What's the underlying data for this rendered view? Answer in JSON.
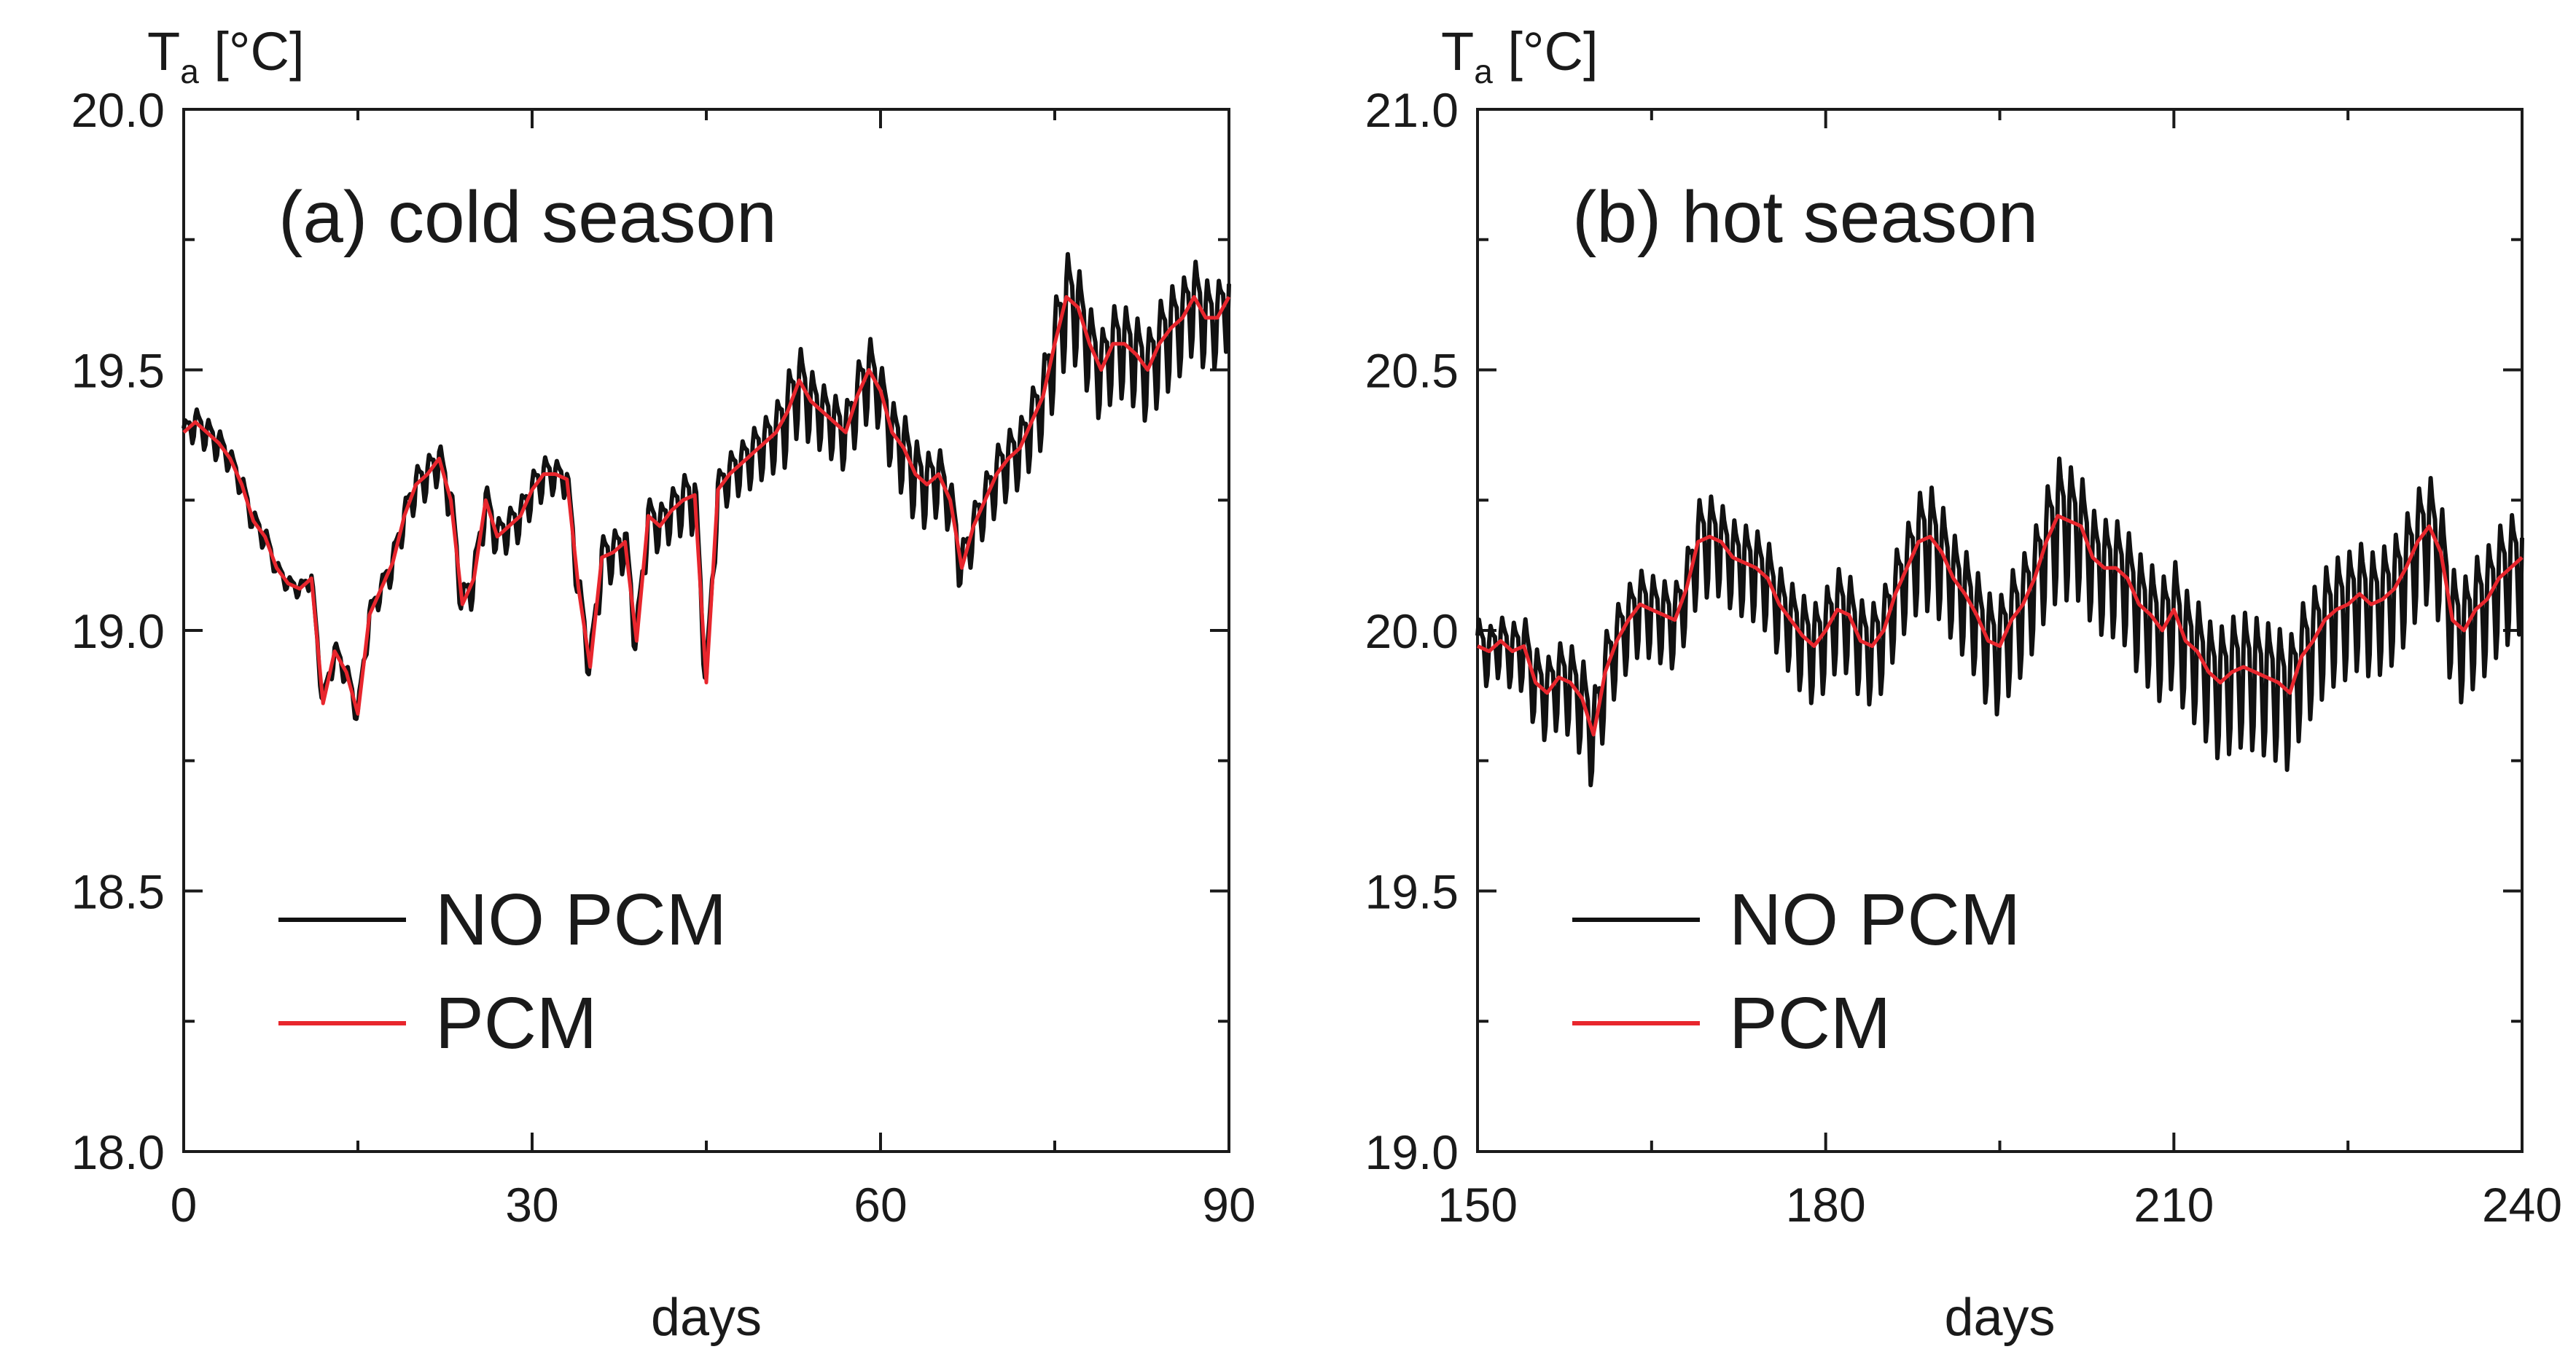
{
  "chart_data": [
    {
      "type": "line",
      "panel_label": "(a) cold season",
      "ylabel_main": "T",
      "ylabel_sub": "a",
      "ylabel_unit": " [°C]",
      "xlabel": "days",
      "xlim": [
        0,
        90
      ],
      "ylim": [
        18.0,
        20.0
      ],
      "xticks": [
        "0",
        "30",
        "60",
        "90"
      ],
      "yticks": [
        "18.0",
        "18.5",
        "19.0",
        "19.5",
        "20.0"
      ],
      "legend": [
        "NO PCM",
        "PCM"
      ],
      "legend_position": "lower-left",
      "series": [
        {
          "name": "PCM",
          "color": "#e8262d",
          "x": [
            0,
            1,
            2,
            3,
            4,
            5,
            6,
            7,
            8,
            9,
            10,
            11,
            12,
            13,
            14,
            15,
            16,
            17,
            18,
            19,
            20,
            21,
            22,
            23,
            24,
            25,
            26,
            27,
            28,
            29,
            30,
            31,
            32,
            33,
            34,
            35,
            36,
            37,
            38,
            39,
            40,
            41,
            42,
            43,
            44,
            45,
            46,
            47,
            48,
            49,
            50,
            51,
            52,
            53,
            54,
            55,
            56,
            57,
            58,
            59,
            60,
            61,
            62,
            63,
            64,
            65,
            66,
            67,
            68,
            69,
            70,
            71,
            72,
            73,
            74,
            75,
            76,
            77,
            78,
            79,
            80,
            81,
            82,
            83,
            84,
            85,
            86,
            87,
            88,
            89,
            90
          ],
          "y": [
            19.38,
            19.4,
            19.38,
            19.36,
            19.33,
            19.28,
            19.21,
            19.18,
            19.12,
            19.09,
            19.08,
            19.1,
            18.86,
            18.96,
            18.92,
            18.84,
            19.03,
            19.08,
            19.13,
            19.22,
            19.28,
            19.3,
            19.33,
            19.25,
            19.05,
            19.1,
            19.25,
            19.18,
            19.2,
            19.22,
            19.27,
            19.3,
            19.3,
            19.29,
            19.08,
            18.93,
            19.14,
            19.15,
            19.17,
            18.98,
            19.22,
            19.2,
            19.23,
            19.25,
            19.26,
            18.9,
            19.27,
            19.3,
            19.32,
            19.34,
            19.36,
            19.38,
            19.42,
            19.48,
            19.44,
            19.42,
            19.4,
            19.38,
            19.45,
            19.5,
            19.46,
            19.38,
            19.35,
            19.3,
            19.28,
            19.3,
            19.25,
            19.12,
            19.2,
            19.25,
            19.3,
            19.33,
            19.35,
            19.4,
            19.45,
            19.55,
            19.64,
            19.62,
            19.55,
            19.5,
            19.55,
            19.55,
            19.53,
            19.5,
            19.55,
            19.58,
            19.6,
            19.64,
            19.6,
            19.6,
            19.64
          ]
        },
        {
          "name": "NO PCM",
          "color": "#111111",
          "osc_amplitude": [
            0.03,
            0.04,
            0.04,
            0.04,
            0.03,
            0.03,
            0.03,
            0.03,
            0.02,
            0.02,
            0.02,
            0.02,
            0.03,
            0.03,
            0.03,
            0.03,
            0.03,
            0.03,
            0.04,
            0.04,
            0.05,
            0.05,
            0.05,
            0.05,
            0.05,
            0.05,
            0.05,
            0.05,
            0.05,
            0.05,
            0.05,
            0.05,
            0.04,
            0.04,
            0.05,
            0.05,
            0.06,
            0.06,
            0.06,
            0.06,
            0.05,
            0.06,
            0.06,
            0.07,
            0.08,
            0.05,
            0.05,
            0.06,
            0.06,
            0.07,
            0.07,
            0.08,
            0.11,
            0.1,
            0.09,
            0.08,
            0.08,
            0.08,
            0.09,
            0.1,
            0.08,
            0.09,
            0.1,
            0.1,
            0.09,
            0.08,
            0.07,
            0.07,
            0.06,
            0.07,
            0.08,
            0.08,
            0.08,
            0.09,
            0.1,
            0.12,
            0.13,
            0.12,
            0.11,
            0.11,
            0.11,
            0.11,
            0.11,
            0.11,
            0.12,
            0.12,
            0.11,
            0.11,
            0.11,
            0.1,
            0.1
          ]
        }
      ]
    },
    {
      "type": "line",
      "panel_label": "(b) hot season",
      "ylabel_main": "T",
      "ylabel_sub": "a",
      "ylabel_unit": " [°C]",
      "xlabel": "days",
      "xlim": [
        150,
        240
      ],
      "ylim": [
        19.0,
        21.0
      ],
      "xticks": [
        "150",
        "180",
        "210",
        "240"
      ],
      "yticks": [
        "19.0",
        "19.5",
        "20.0",
        "20.5",
        "21.0"
      ],
      "legend": [
        "NO PCM",
        "PCM"
      ],
      "legend_position": "lower-left",
      "series": [
        {
          "name": "PCM",
          "color": "#e8262d",
          "x": [
            150,
            151,
            152,
            153,
            154,
            155,
            156,
            157,
            158,
            159,
            160,
            161,
            162,
            163,
            164,
            165,
            166,
            167,
            168,
            169,
            170,
            171,
            172,
            173,
            174,
            175,
            176,
            177,
            178,
            179,
            180,
            181,
            182,
            183,
            184,
            185,
            186,
            187,
            188,
            189,
            190,
            191,
            192,
            193,
            194,
            195,
            196,
            197,
            198,
            199,
            200,
            201,
            202,
            203,
            204,
            205,
            206,
            207,
            208,
            209,
            210,
            211,
            212,
            213,
            214,
            215,
            216,
            217,
            218,
            219,
            220,
            221,
            222,
            223,
            224,
            225,
            226,
            227,
            228,
            229,
            230,
            231,
            232,
            233,
            234,
            235,
            236,
            237,
            238,
            239,
            240
          ],
          "y": [
            19.97,
            19.96,
            19.98,
            19.96,
            19.97,
            19.9,
            19.88,
            19.91,
            19.9,
            19.87,
            19.8,
            19.92,
            19.98,
            20.02,
            20.05,
            20.04,
            20.03,
            20.02,
            20.08,
            20.17,
            20.18,
            20.17,
            20.14,
            20.13,
            20.12,
            20.1,
            20.05,
            20.02,
            19.99,
            19.97,
            20.0,
            20.04,
            20.03,
            19.98,
            19.97,
            20.0,
            20.07,
            20.12,
            20.17,
            20.18,
            20.15,
            20.1,
            20.07,
            20.03,
            19.98,
            19.97,
            20.02,
            20.05,
            20.1,
            20.17,
            20.22,
            20.21,
            20.2,
            20.14,
            20.12,
            20.12,
            20.1,
            20.05,
            20.03,
            20.0,
            20.04,
            19.98,
            19.96,
            19.92,
            19.9,
            19.92,
            19.93,
            19.92,
            19.91,
            19.9,
            19.88,
            19.95,
            19.98,
            20.02,
            20.04,
            20.05,
            20.07,
            20.05,
            20.06,
            20.08,
            20.12,
            20.17,
            20.2,
            20.15,
            20.02,
            20.0,
            20.04,
            20.06,
            20.1,
            20.12,
            20.14
          ]
        },
        {
          "name": "NO PCM",
          "color": "#111111",
          "osc_amplitude": [
            0.08,
            0.07,
            0.07,
            0.08,
            0.09,
            0.1,
            0.1,
            0.1,
            0.11,
            0.12,
            0.12,
            0.11,
            0.1,
            0.1,
            0.1,
            0.1,
            0.1,
            0.1,
            0.1,
            0.12,
            0.12,
            0.11,
            0.11,
            0.11,
            0.11,
            0.11,
            0.11,
            0.11,
            0.12,
            0.12,
            0.12,
            0.12,
            0.12,
            0.12,
            0.12,
            0.12,
            0.12,
            0.12,
            0.14,
            0.15,
            0.14,
            0.13,
            0.13,
            0.13,
            0.14,
            0.14,
            0.14,
            0.14,
            0.14,
            0.15,
            0.17,
            0.16,
            0.15,
            0.14,
            0.14,
            0.14,
            0.14,
            0.15,
            0.15,
            0.15,
            0.15,
            0.15,
            0.15,
            0.15,
            0.16,
            0.16,
            0.16,
            0.16,
            0.16,
            0.16,
            0.16,
            0.15,
            0.15,
            0.15,
            0.15,
            0.15,
            0.15,
            0.15,
            0.15,
            0.15,
            0.15,
            0.15,
            0.15,
            0.15,
            0.15,
            0.15,
            0.15,
            0.15,
            0.15,
            0.15,
            0.15
          ]
        }
      ]
    }
  ]
}
